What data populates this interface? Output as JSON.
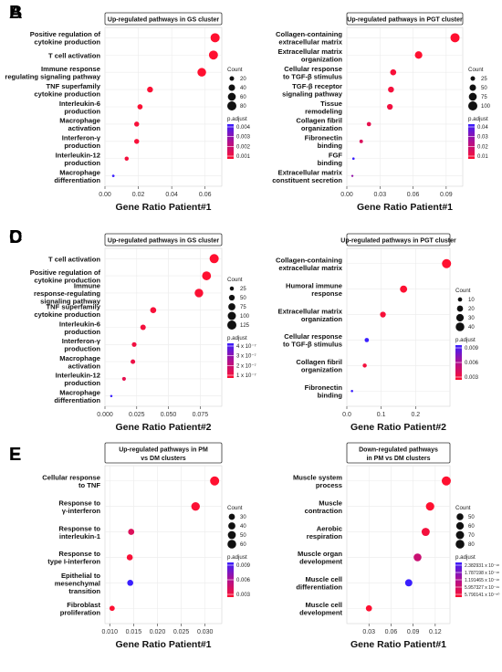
{
  "chart_data": [
    {
      "panel": "A",
      "type": "scatter",
      "title": "Up-regulated pathways in GS cluster",
      "xlabel": "Gene Ratio Patient#1",
      "xlim": [
        0,
        0.07
      ],
      "xticks": [
        "0.00",
        "0.02",
        "0.04",
        "0.06"
      ],
      "tickvals": [
        0,
        0.02,
        0.04,
        0.06
      ],
      "categories": [
        [
          "Positive regulation of",
          "cytokine production"
        ],
        [
          "T cell activation"
        ],
        [
          "Immune response",
          "regulating signaling pathway"
        ],
        [
          "TNF superfamily",
          "cytokine production"
        ],
        [
          "Interleukin-6",
          "production"
        ],
        [
          "Macrophage",
          "activation"
        ],
        [
          "Interferon-γ",
          "production"
        ],
        [
          "Interleukin-12",
          "production"
        ],
        [
          "Macrophage",
          "differentiation"
        ]
      ],
      "x": [
        0.066,
        0.065,
        0.058,
        0.027,
        0.021,
        0.019,
        0.019,
        0.013,
        0.005
      ],
      "count": [
        80,
        78,
        72,
        33,
        26,
        24,
        24,
        16,
        6
      ],
      "p_adjust": [
        0.0001,
        0.0001,
        0.0001,
        0.0002,
        0.0002,
        0.0003,
        0.0003,
        0.0004,
        0.0045
      ],
      "legend_count": {
        "title": "Count",
        "values": [
          20,
          40,
          60,
          80
        ],
        "labels": [
          "20",
          "40",
          "60",
          "80"
        ]
      },
      "legend_color": {
        "title": "p.adjust",
        "labels": [
          "0.004",
          "0.003",
          "0.002",
          "0.001"
        ],
        "min": 0.0001,
        "max": 0.0045
      }
    },
    {
      "panel": "B",
      "type": "scatter",
      "title": "Up-regulated pathways in PGT cluster",
      "xlabel": "Gene Ratio Patient#1",
      "xlim": [
        0,
        0.105
      ],
      "xticks": [
        "0.00",
        "0.03",
        "0.06",
        "0.09"
      ],
      "tickvals": [
        0,
        0.03,
        0.06,
        0.09
      ],
      "categories": [
        [
          "Collagen-containing",
          "extracellular matrix"
        ],
        [
          "Extracellular matrix",
          "organization"
        ],
        [
          "Cellular response",
          "to TGF-β stimulus"
        ],
        [
          "TGF-β receptor",
          "signaling pathway"
        ],
        [
          "Tissue",
          "remodeling"
        ],
        [
          "Collagen fibril",
          "organization"
        ],
        [
          "Fibronectin",
          "binding"
        ],
        [
          "FGF",
          "binding"
        ],
        [
          "Extracellular matrix",
          "constituent secretion"
        ]
      ],
      "x": [
        0.098,
        0.065,
        0.042,
        0.04,
        0.039,
        0.02,
        0.013,
        0.006,
        0.005
      ],
      "count": [
        100,
        67,
        44,
        42,
        40,
        22,
        15,
        7,
        5
      ],
      "p_adjust": [
        0.001,
        0.001,
        0.003,
        0.004,
        0.005,
        0.008,
        0.012,
        0.048,
        0.03
      ],
      "legend_count": {
        "title": "Count",
        "values": [
          25,
          50,
          75,
          100
        ],
        "labels": [
          "25",
          "50",
          "75",
          "100"
        ]
      },
      "legend_color": {
        "title": "p.adjust",
        "labels": [
          "0.04",
          "0.03",
          "0.02",
          "0.01"
        ],
        "min": 0.001,
        "max": 0.048
      }
    },
    {
      "panel": "C",
      "type": "scatter",
      "title": "Up-regulated pathways in GS cluster",
      "xlabel": "Gene Ratio Patient#2",
      "xlim": [
        0,
        0.092
      ],
      "xticks": [
        "0.000",
        "0.025",
        "0.050",
        "0.075"
      ],
      "tickvals": [
        0,
        0.025,
        0.05,
        0.075
      ],
      "categories": [
        [
          "T cell activation"
        ],
        [
          "Positive regulation of",
          "cytokine production"
        ],
        [
          "Immune",
          "response-regulating",
          "signaling pathway"
        ],
        [
          "TNF superfamily",
          "cytokine production"
        ],
        [
          "Interleukin-6",
          "production"
        ],
        [
          "Interferon-γ",
          "production"
        ],
        [
          "Macrophage",
          "activation"
        ],
        [
          "Interleukin-12",
          "production"
        ],
        [
          "Macrophage",
          "differentiation"
        ]
      ],
      "x": [
        0.086,
        0.08,
        0.074,
        0.038,
        0.03,
        0.023,
        0.022,
        0.015,
        0.005
      ],
      "count": [
        125,
        118,
        110,
        55,
        45,
        33,
        32,
        22,
        8
      ],
      "p_adjust": [
        1e-07,
        1e-07,
        2e-07,
        3e-07,
        4e-07,
        5e-07,
        6e-07,
        8e-07,
        4.5e-06
      ],
      "legend_count": {
        "title": "Count",
        "values": [
          25,
          50,
          75,
          100,
          125
        ],
        "labels": [
          "25",
          "50",
          "75",
          "100",
          "125"
        ]
      },
      "legend_color": {
        "title": "p.adjust",
        "labels": [
          "4 x 10⁻⁷",
          "3 x 10⁻⁷",
          "2 x 10⁻⁷",
          "1 x 10⁻⁷"
        ],
        "min": 1e-07,
        "max": 4.5e-06
      }
    },
    {
      "panel": "D",
      "type": "scatter",
      "title": "Up-regulated pathways in PGT cluster",
      "xlabel": "Gene Ratio Patient#2",
      "xlim": [
        0,
        0.3
      ],
      "xticks": [
        "0.0",
        "0.1",
        "0.2"
      ],
      "tickvals": [
        0,
        0.1,
        0.2
      ],
      "categories": [
        [
          "Collagen-containing",
          "extracellular matrix"
        ],
        [
          "Humoral immune",
          "response"
        ],
        [
          "Extracellular matrix",
          "organization"
        ],
        [
          "Cellular response",
          "to TGF-β stimulus"
        ],
        [
          "Collagen fibril",
          "organization"
        ],
        [
          "Fibronectin",
          "binding"
        ]
      ],
      "x": [
        0.29,
        0.165,
        0.105,
        0.058,
        0.052,
        0.015
      ],
      "count": [
        45,
        28,
        18,
        10,
        9,
        3
      ],
      "p_adjust": [
        0.0005,
        0.0006,
        0.001,
        0.011,
        0.0012,
        0.011
      ],
      "legend_count": {
        "title": "Count",
        "values": [
          10,
          20,
          30,
          40
        ],
        "labels": [
          "10",
          "20",
          "30",
          "40"
        ]
      },
      "legend_color": {
        "title": "p.adjust",
        "labels": [
          "0.009",
          "0.006",
          "0.003"
        ],
        "min": 0.0005,
        "max": 0.011
      }
    },
    {
      "panel": "E",
      "type": "scatter",
      "title": [
        "Up-regulated pathways in PM",
        "vs DM clusters"
      ],
      "xlabel": "Gene Ratio Patient#1",
      "xlim": [
        0.009,
        0.0335
      ],
      "xticks": [
        "0.010",
        "0.015",
        "0.020",
        "0.025",
        "0.030"
      ],
      "tickvals": [
        0.01,
        0.015,
        0.02,
        0.025,
        0.03
      ],
      "categories": [
        [
          "Cellular response",
          "to TNF"
        ],
        [
          "Response to",
          "γ-interferon"
        ],
        [
          "Response to",
          "interleukin-1"
        ],
        [
          "Response to",
          "type I-interferon"
        ],
        [
          "Epithelial to",
          "mesenchymal",
          "transition"
        ],
        [
          "Fibroblast",
          "proliferation"
        ]
      ],
      "x": [
        0.032,
        0.028,
        0.0145,
        0.0142,
        0.0143,
        0.0105
      ],
      "count": [
        66,
        58,
        30,
        29,
        29,
        22
      ],
      "p_adjust": [
        0.0001,
        0.0004,
        0.0025,
        0.0005,
        0.011,
        0.0002
      ],
      "legend_count": {
        "title": "Count",
        "values": [
          30,
          40,
          50,
          60
        ],
        "labels": [
          "30",
          "40",
          "50",
          "60"
        ]
      },
      "legend_color": {
        "title": "p.adjust",
        "labels": [
          "0.009",
          "0.006",
          "0.003"
        ],
        "min": 0.0001,
        "max": 0.011
      }
    },
    {
      "panel": "F",
      "type": "scatter",
      "title": [
        "Down-regulated pathways",
        "in PM vs DM clusters"
      ],
      "xlabel": "Gene Ratio Patient#1",
      "xlim": [
        0.0,
        0.14
      ],
      "xticks": [
        "0.03",
        "0.06",
        "0.09",
        "0.12"
      ],
      "tickvals": [
        0.03,
        0.06,
        0.09,
        0.12
      ],
      "categories": [
        [
          "Muscle system",
          "process"
        ],
        [
          "Muscle",
          "contraction"
        ],
        [
          "Aerobic",
          "respiration"
        ],
        [
          "Muscle organ",
          "development"
        ],
        [
          "Muscle cell",
          "differentiation"
        ],
        [
          "Muscle cell",
          "development"
        ]
      ],
      "x": [
        0.135,
        0.113,
        0.107,
        0.096,
        0.084,
        0.03
      ],
      "count": [
        88,
        74,
        70,
        64,
        55,
        40
      ],
      "p_adjust": [
        5.79e-19,
        5.79e-19,
        7e-19,
        1.2e-18,
        2.38e-18,
        5.9e-19
      ],
      "legend_count": {
        "title": "Count",
        "values": [
          50,
          60,
          70,
          80
        ],
        "labels": [
          "50",
          "60",
          "70",
          "80"
        ]
      },
      "legend_color": {
        "title": "p.adjust",
        "labels": [
          "2.382931 x 10⁻¹⁸",
          "1.787198 x 10⁻¹⁸",
          "1.191465 x 10⁻¹⁸",
          "5.957327 x 10⁻¹⁹",
          "5.790141 x 10⁻⁵⁰"
        ],
        "min": 5.79e-19,
        "max": 2.38e-18
      }
    }
  ]
}
